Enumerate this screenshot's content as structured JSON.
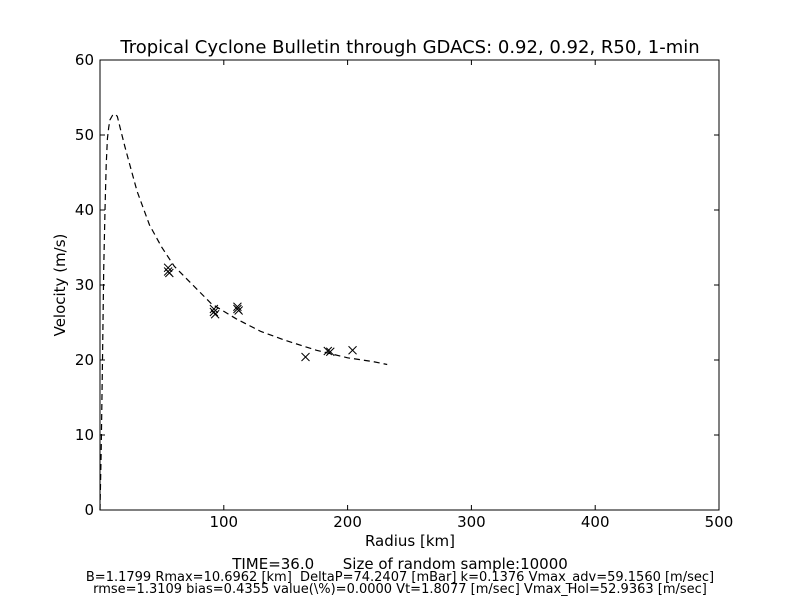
{
  "chart_data": {
    "type": "line",
    "title": "Tropical Cyclone Bulletin through GDACS: 0.92, 0.92, R50, 1-min",
    "xlabel": "Radius [km]",
    "ylabel": "Velocity (m/s)",
    "xlim": [
      0,
      500
    ],
    "ylim": [
      0,
      60
    ],
    "xticks": [
      100,
      200,
      300,
      400,
      500
    ],
    "yticks": [
      0,
      10,
      20,
      30,
      40,
      50,
      60
    ],
    "grid": false,
    "series": [
      {
        "style": "dashed",
        "color": "#000000",
        "x": [
          0,
          1,
          2,
          3,
          4,
          5,
          6,
          7,
          8,
          10,
          12,
          14,
          17,
          20,
          25,
          30,
          40,
          50,
          60,
          75,
          90,
          110,
          130,
          150,
          175,
          200,
          220,
          232
        ],
        "y": [
          0,
          8,
          20,
          32,
          40,
          46,
          49.5,
          51,
          52,
          52.6,
          52.8,
          52.5,
          50.5,
          48.5,
          45.5,
          42.5,
          38,
          35,
          32.5,
          30,
          27.5,
          25.5,
          23.8,
          22.6,
          21.3,
          20.3,
          19.8,
          19.4
        ]
      },
      {
        "style": "markers",
        "marker": "x",
        "color": "#000000",
        "x": [
          55,
          55,
          56,
          92,
          92,
          93,
          111,
          111,
          112,
          166,
          184,
          186,
          204
        ],
        "y": [
          32.3,
          31.8,
          31.6,
          26.8,
          26.4,
          26.1,
          27.1,
          26.8,
          26.6,
          20.4,
          21.2,
          21.1,
          21.3
        ]
      }
    ]
  },
  "footer": {
    "time_line": "TIME=36.0      Size of random sample:10000",
    "params_line": "B=1.1799 Rmax=10.6962 [km]  DeltaP=74.2407 [mBar] k=0.1376 Vmax_adv=59.1560 [m/sec]",
    "stats_line": "rmse=1.3109 bias=0.4355 value(\\%)=0.0000 Vt=1.8077 [m/sec] Vmax_Hol=52.9363 [m/sec]"
  }
}
